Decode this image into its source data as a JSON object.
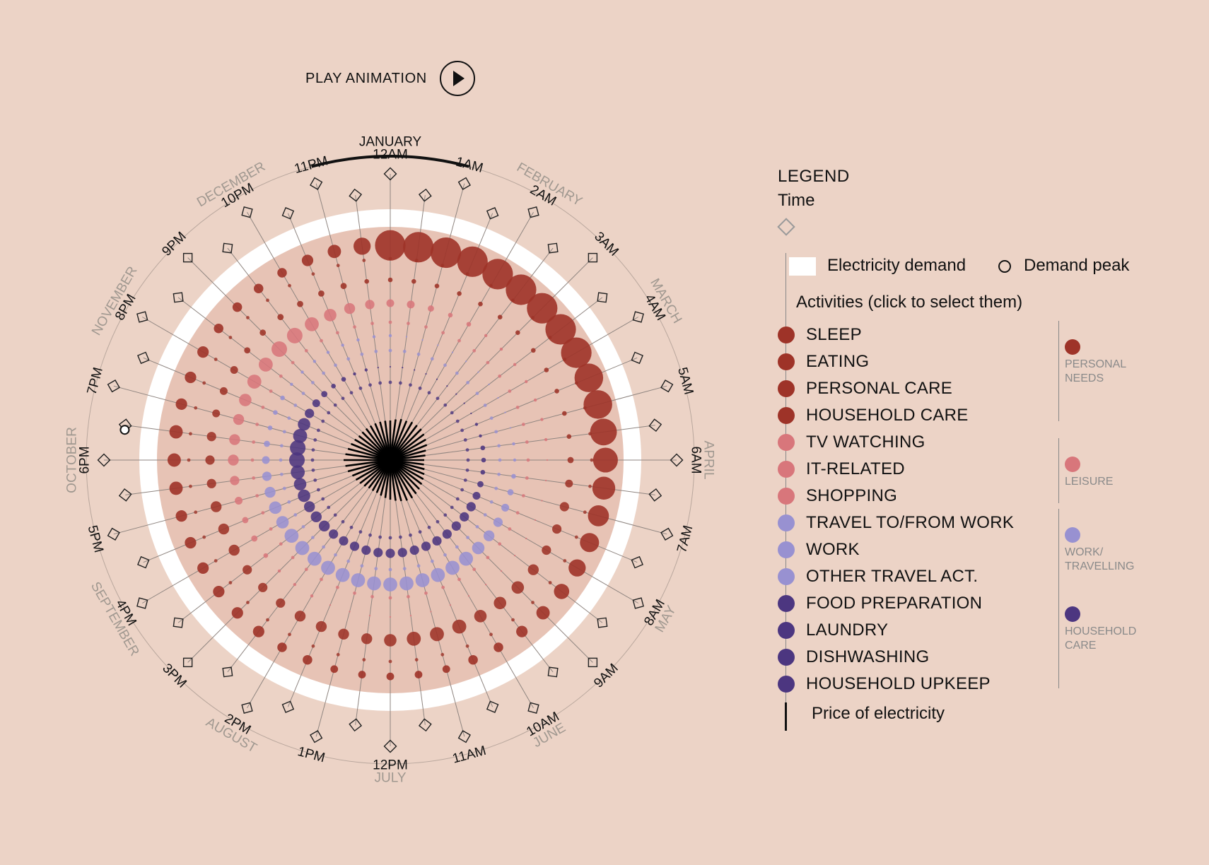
{
  "colors": {
    "background": "#ecd3c6",
    "demand_ring": "#ffffff",
    "inner_disc": "#e7c3b5",
    "personal_needs": "#9e3328",
    "leisure": "#d8767b",
    "work_travelling": "#9891d1",
    "household_care": "#4c3680",
    "month_text": "#a09890",
    "hour_text": "#111111"
  },
  "play": {
    "label": "PLAY ANIMATION",
    "icon": "play-icon"
  },
  "legend": {
    "title": "LEGEND",
    "time_label": "Time",
    "electricity_demand": "Electricity demand",
    "demand_peak": "Demand peak",
    "activities_title": "Activities (click to select them)",
    "price_label": "Price of electricity",
    "activities": [
      {
        "label": "SLEEP",
        "group": "personal_needs"
      },
      {
        "label": "EATING",
        "group": "personal_needs"
      },
      {
        "label": "PERSONAL CARE",
        "group": "personal_needs"
      },
      {
        "label": "HOUSEHOLD CARE",
        "group": "personal_needs"
      },
      {
        "label": "TV WATCHING",
        "group": "leisure"
      },
      {
        "label": "IT-RELATED",
        "group": "leisure"
      },
      {
        "label": "SHOPPING",
        "group": "leisure"
      },
      {
        "label": "TRAVEL TO/FROM WORK",
        "group": "work_travelling"
      },
      {
        "label": "WORK",
        "group": "work_travelling"
      },
      {
        "label": "OTHER TRAVEL ACT.",
        "group": "work_travelling"
      },
      {
        "label": "FOOD PREPARATION",
        "group": "household_care"
      },
      {
        "label": "LAUNDRY",
        "group": "household_care"
      },
      {
        "label": "DISHWASHING",
        "group": "household_care"
      },
      {
        "label": "HOUSEHOLD UPKEEP",
        "group": "household_care"
      }
    ],
    "groups": [
      {
        "key": "personal_needs",
        "lines": [
          "PERSONAL",
          "NEEDS"
        ]
      },
      {
        "key": "leisure",
        "lines": [
          "LEISURE"
        ]
      },
      {
        "key": "work_travelling",
        "lines": [
          "WORK/",
          "TRAVELLING"
        ]
      },
      {
        "key": "household_care",
        "lines": [
          "HOUSEHOLD",
          "CARE"
        ]
      }
    ]
  },
  "chart_data": {
    "type": "radial-dot",
    "selected_month": "JANUARY",
    "months": [
      "JANUARY",
      "FEBRUARY",
      "MARCH",
      "APRIL",
      "MAY",
      "JUNE",
      "JULY",
      "AUGUST",
      "SEPTEMBER",
      "OCTOBER",
      "NOVEMBER",
      "DECEMBER"
    ],
    "hour_labels": [
      "12AM",
      "1AM",
      "2AM",
      "3AM",
      "4AM",
      "5AM",
      "6AM",
      "7AM",
      "8AM",
      "9AM",
      "10AM",
      "11AM",
      "12PM",
      "1PM",
      "2PM",
      "3PM",
      "4PM",
      "5PM",
      "6PM",
      "7PM",
      "8PM",
      "9PM",
      "10PM",
      "11PM"
    ],
    "slots_per_hour": 2,
    "demand_peak_slot": 37,
    "outer_sizes": [
      16,
      16,
      16,
      16,
      16,
      16,
      16,
      16,
      16,
      15,
      15,
      14,
      13,
      12,
      11,
      10,
      9,
      8,
      7,
      6,
      5,
      5,
      4,
      4,
      4,
      4,
      4,
      5,
      5,
      6,
      6,
      6,
      6,
      6,
      6,
      7,
      7,
      7,
      6,
      6,
      6,
      5,
      5,
      5,
      5,
      6,
      7,
      9
    ],
    "group_rings": {
      "personal_needs": [
        3,
        3,
        3,
        3,
        3,
        3,
        3,
        3,
        3,
        3,
        3,
        3,
        4,
        5,
        6,
        6,
        6,
        7,
        8,
        8,
        8,
        9,
        9,
        9,
        8,
        7,
        7,
        7,
        7,
        6,
        6,
        6,
        7,
        7,
        7,
        6,
        6,
        6,
        5,
        5,
        5,
        4,
        4,
        4,
        4,
        4,
        4,
        3
      ],
      "leisure": [
        5,
        5,
        4,
        3,
        3,
        2,
        2,
        2,
        2,
        2,
        2,
        2,
        1,
        1,
        1,
        1,
        1,
        1,
        1,
        1,
        1,
        1,
        1,
        1,
        1,
        1,
        1,
        1,
        2,
        2,
        2,
        3,
        4,
        4,
        5,
        6,
        7,
        7,
        7,
        8,
        9,
        9,
        10,
        10,
        9,
        8,
        7,
        6
      ],
      "work_travelling": [
        2,
        1,
        1,
        1,
        1,
        1,
        1,
        1,
        1,
        1,
        1,
        2,
        2,
        3,
        4,
        5,
        6,
        7,
        8,
        9,
        9,
        9,
        9,
        9,
        9,
        9,
        9,
        9,
        9,
        9,
        9,
        9,
        8,
        8,
        7,
        6,
        5,
        4,
        3,
        3,
        3,
        2,
        2,
        2,
        2,
        2,
        2,
        2
      ],
      "household_care": [
        1,
        1,
        1,
        1,
        1,
        1,
        1,
        1,
        1,
        2,
        2,
        3,
        3,
        3,
        4,
        5,
        6,
        6,
        6,
        6,
        6,
        6,
        6,
        6,
        6,
        6,
        6,
        6,
        6,
        6,
        7,
        7,
        7,
        8,
        8,
        9,
        10,
        10,
        9,
        8,
        6,
        5,
        4,
        3,
        3,
        2,
        2,
        1
      ]
    },
    "price_lengths": [
      56,
      58,
      60,
      60,
      62,
      62,
      62,
      60,
      58,
      56,
      52,
      50,
      48,
      48,
      50,
      52,
      54,
      56,
      58,
      60,
      62,
      62,
      60,
      58,
      56,
      54,
      52,
      50,
      50,
      50,
      52,
      54,
      56,
      58,
      62,
      64,
      66,
      64,
      62,
      60,
      58,
      56,
      56,
      56,
      56,
      56,
      56,
      56
    ]
  }
}
